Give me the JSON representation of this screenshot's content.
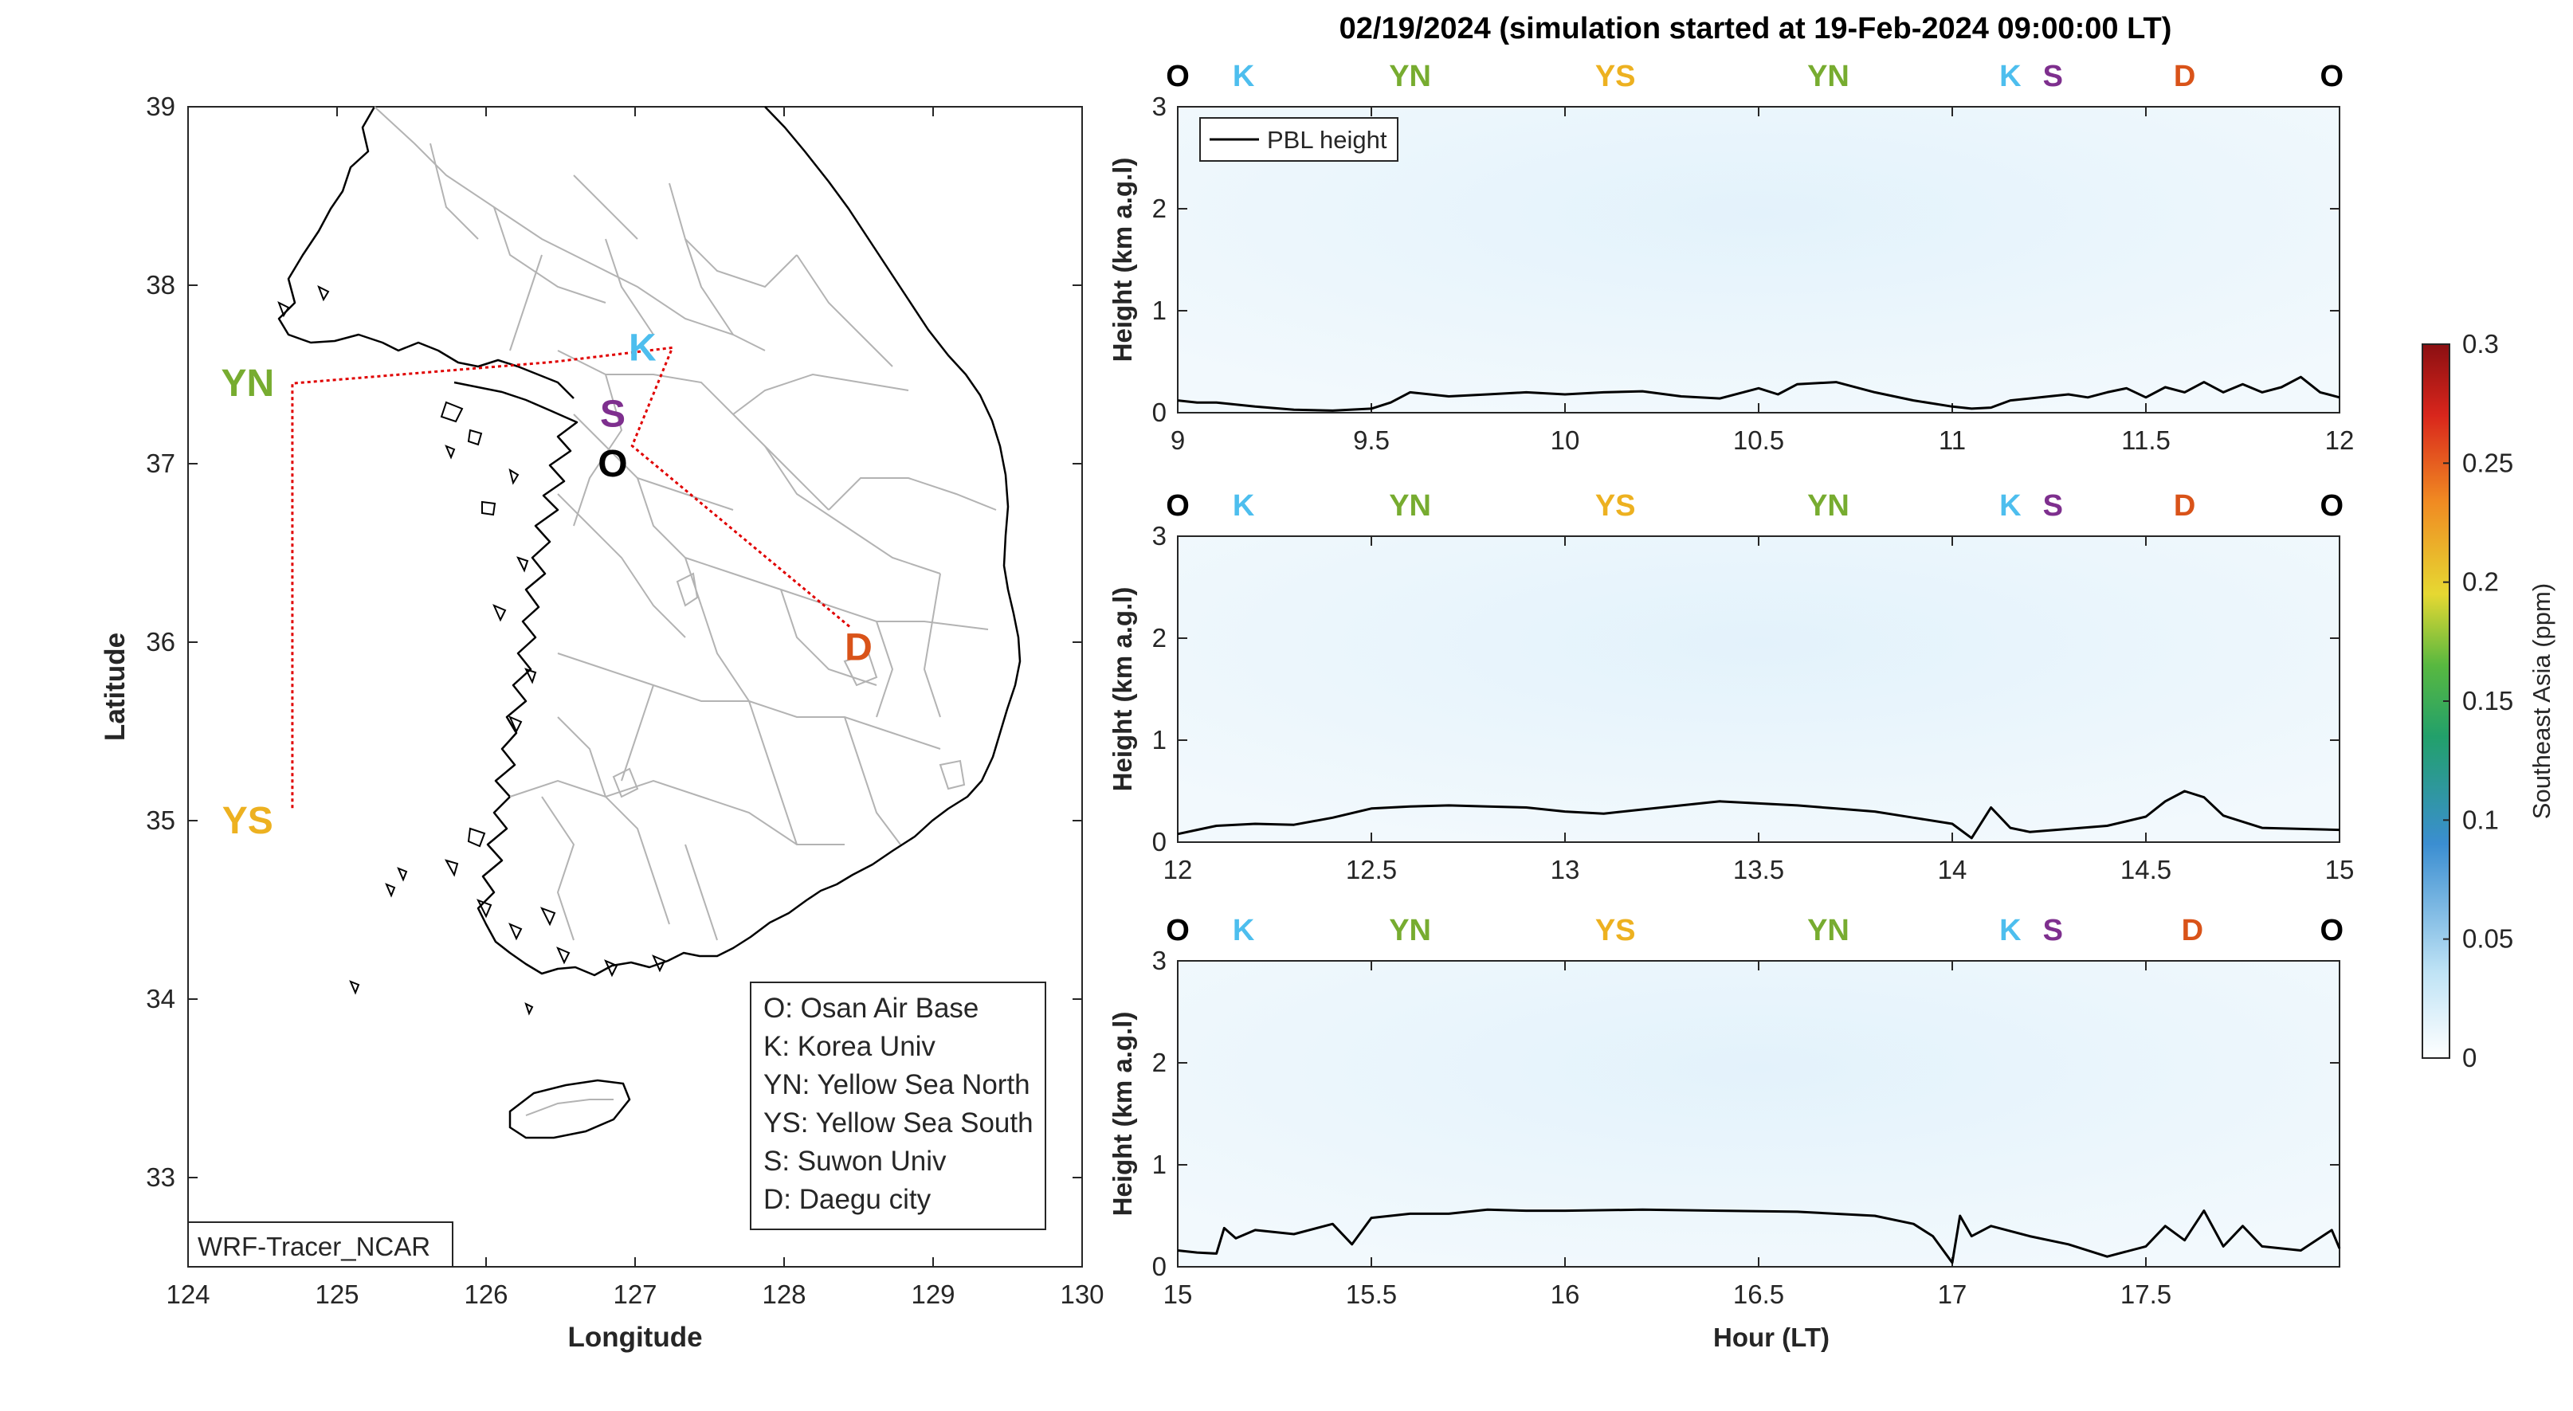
{
  "figure": {
    "title": "02/19/2024 (simulation started at 19-Feb-2024 09:00:00 LT)"
  },
  "colors": {
    "O": "#000000",
    "K": "#4DBEEE",
    "YN": "#77AC30",
    "YS": "#EDB120",
    "S": "#7E2F8E",
    "D": "#D95319",
    "route": "#E00000",
    "coast": "#000000",
    "border": "#b3b3b3"
  },
  "map": {
    "xlabel": "Longitude",
    "ylabel": "Latitude",
    "xlim": [
      124,
      130
    ],
    "ylim": [
      32.5,
      39
    ],
    "xticks": [
      "124",
      "125",
      "126",
      "127",
      "128",
      "129",
      "130"
    ],
    "yticks": [
      "33",
      "34",
      "35",
      "36",
      "37",
      "38",
      "39"
    ],
    "model_label": "WRF-Tracer_NCAR",
    "sites": [
      {
        "code": "K",
        "lon": 127.05,
        "lat": 37.65,
        "color_key": "K"
      },
      {
        "code": "S",
        "lon": 126.85,
        "lat": 37.28,
        "color_key": "S"
      },
      {
        "code": "O",
        "lon": 126.85,
        "lat": 37.0,
        "color_key": "O"
      },
      {
        "code": "YN",
        "lon": 124.4,
        "lat": 37.45,
        "color_key": "YN"
      },
      {
        "code": "YS",
        "lon": 124.4,
        "lat": 35.0,
        "color_key": "YS"
      },
      {
        "code": "D",
        "lon": 128.5,
        "lat": 35.97,
        "color_key": "D"
      }
    ],
    "route": [
      {
        "lon": 124.7,
        "lat": 35.07
      },
      {
        "lon": 124.7,
        "lat": 37.45
      },
      {
        "lon": 126.45,
        "lat": 37.57
      },
      {
        "lon": 127.25,
        "lat": 37.65
      },
      {
        "lon": 126.98,
        "lat": 37.1
      },
      {
        "lon": 128.45,
        "lat": 36.08
      }
    ],
    "legend": [
      "O: Osan Air Base",
      "K: Korea Univ",
      "YN: Yellow Sea North",
      "YS: Yellow Sea South",
      "S: Suwon Univ",
      "D: Daegu city"
    ]
  },
  "panel_ylabel": "Height (km a.g.l)",
  "xlabel_bottom": "Hour (LT)",
  "pbl_legend": "PBL height",
  "panels": [
    {
      "xlim": [
        9,
        12
      ],
      "ylim": [
        0,
        3
      ],
      "xticks": [
        "9",
        "9.5",
        "10",
        "10.5",
        "11",
        "11.5",
        "12"
      ],
      "yticks": [
        "0",
        "1",
        "2",
        "3"
      ],
      "site_markers": [
        {
          "code": "O",
          "x": 9.0
        },
        {
          "code": "K",
          "x": 9.17
        },
        {
          "code": "YN",
          "x": 9.6
        },
        {
          "code": "YS",
          "x": 10.13
        },
        {
          "code": "YN",
          "x": 10.68
        },
        {
          "code": "K",
          "x": 11.15
        },
        {
          "code": "S",
          "x": 11.26
        },
        {
          "code": "D",
          "x": 11.6
        },
        {
          "code": "O",
          "x": 11.98
        }
      ],
      "pbl": {
        "x": [
          9.0,
          9.05,
          9.1,
          9.2,
          9.3,
          9.4,
          9.5,
          9.55,
          9.6,
          9.7,
          9.8,
          9.9,
          10.0,
          10.1,
          10.2,
          10.3,
          10.4,
          10.5,
          10.55,
          10.6,
          10.7,
          10.8,
          10.9,
          11.0,
          11.05,
          11.1,
          11.15,
          11.2,
          11.25,
          11.3,
          11.35,
          11.4,
          11.45,
          11.5,
          11.55,
          11.6,
          11.65,
          11.7,
          11.75,
          11.8,
          11.85,
          11.9,
          11.95,
          12.0
        ],
        "y": [
          0.12,
          0.1,
          0.1,
          0.06,
          0.03,
          0.02,
          0.04,
          0.1,
          0.2,
          0.16,
          0.18,
          0.2,
          0.18,
          0.2,
          0.21,
          0.16,
          0.14,
          0.24,
          0.18,
          0.28,
          0.3,
          0.2,
          0.12,
          0.06,
          0.04,
          0.05,
          0.12,
          0.14,
          0.16,
          0.18,
          0.15,
          0.2,
          0.24,
          0.15,
          0.25,
          0.2,
          0.3,
          0.2,
          0.28,
          0.2,
          0.25,
          0.35,
          0.2,
          0.15
        ]
      }
    },
    {
      "xlim": [
        12,
        15
      ],
      "ylim": [
        0,
        3
      ],
      "xticks": [
        "12",
        "12.5",
        "13",
        "13.5",
        "14",
        "14.5",
        "15"
      ],
      "yticks": [
        "0",
        "1",
        "2",
        "3"
      ],
      "site_markers": [
        {
          "code": "O",
          "x": 12.0
        },
        {
          "code": "K",
          "x": 12.17
        },
        {
          "code": "YN",
          "x": 12.6
        },
        {
          "code": "YS",
          "x": 13.13
        },
        {
          "code": "YN",
          "x": 13.68
        },
        {
          "code": "K",
          "x": 14.15
        },
        {
          "code": "S",
          "x": 14.26
        },
        {
          "code": "D",
          "x": 14.6
        },
        {
          "code": "O",
          "x": 14.98
        }
      ],
      "pbl": {
        "x": [
          12.0,
          12.05,
          12.1,
          12.2,
          12.3,
          12.4,
          12.5,
          12.6,
          12.7,
          12.8,
          12.9,
          13.0,
          13.1,
          13.2,
          13.3,
          13.4,
          13.5,
          13.6,
          13.7,
          13.8,
          13.9,
          14.0,
          14.05,
          14.1,
          14.15,
          14.2,
          14.3,
          14.4,
          14.5,
          14.55,
          14.6,
          14.65,
          14.7,
          14.8,
          14.9,
          15.0
        ],
        "y": [
          0.08,
          0.12,
          0.16,
          0.18,
          0.17,
          0.24,
          0.33,
          0.35,
          0.36,
          0.35,
          0.34,
          0.3,
          0.28,
          0.32,
          0.36,
          0.4,
          0.38,
          0.36,
          0.33,
          0.3,
          0.24,
          0.18,
          0.04,
          0.34,
          0.14,
          0.1,
          0.13,
          0.16,
          0.25,
          0.4,
          0.5,
          0.44,
          0.26,
          0.14,
          0.13,
          0.12
        ]
      }
    },
    {
      "xlim": [
        15,
        18
      ],
      "ylim": [
        0,
        3
      ],
      "xticks": [
        "15",
        "15.5",
        "16",
        "16.5",
        "17",
        "17.5"
      ],
      "yticks": [
        "0",
        "1",
        "2",
        "3"
      ],
      "site_markers": [
        {
          "code": "O",
          "x": 15.0
        },
        {
          "code": "K",
          "x": 15.17
        },
        {
          "code": "YN",
          "x": 15.6
        },
        {
          "code": "YS",
          "x": 16.13
        },
        {
          "code": "YN",
          "x": 16.68
        },
        {
          "code": "K",
          "x": 17.15
        },
        {
          "code": "S",
          "x": 17.26
        },
        {
          "code": "D",
          "x": 17.62
        },
        {
          "code": "O",
          "x": 17.98
        }
      ],
      "pbl": {
        "x": [
          15.0,
          15.05,
          15.1,
          15.12,
          15.15,
          15.2,
          15.3,
          15.4,
          15.45,
          15.5,
          15.6,
          15.7,
          15.8,
          15.9,
          16.0,
          16.2,
          16.4,
          16.6,
          16.8,
          16.9,
          16.95,
          17.0,
          17.02,
          17.05,
          17.1,
          17.2,
          17.3,
          17.4,
          17.5,
          17.55,
          17.6,
          17.65,
          17.7,
          17.75,
          17.8,
          17.9,
          17.98,
          18.0
        ],
        "y": [
          0.16,
          0.14,
          0.13,
          0.38,
          0.28,
          0.36,
          0.32,
          0.42,
          0.22,
          0.48,
          0.52,
          0.52,
          0.56,
          0.55,
          0.55,
          0.56,
          0.55,
          0.54,
          0.5,
          0.42,
          0.3,
          0.04,
          0.5,
          0.3,
          0.4,
          0.3,
          0.22,
          0.1,
          0.2,
          0.4,
          0.26,
          0.55,
          0.2,
          0.4,
          0.2,
          0.16,
          0.36,
          0.18
        ]
      }
    }
  ],
  "colorbar": {
    "label": "Southeast Asia (ppm)",
    "lim": [
      0,
      0.3
    ],
    "ticks": [
      "0",
      "0.05",
      "0.1",
      "0.15",
      "0.2",
      "0.25",
      "0.3"
    ]
  }
}
